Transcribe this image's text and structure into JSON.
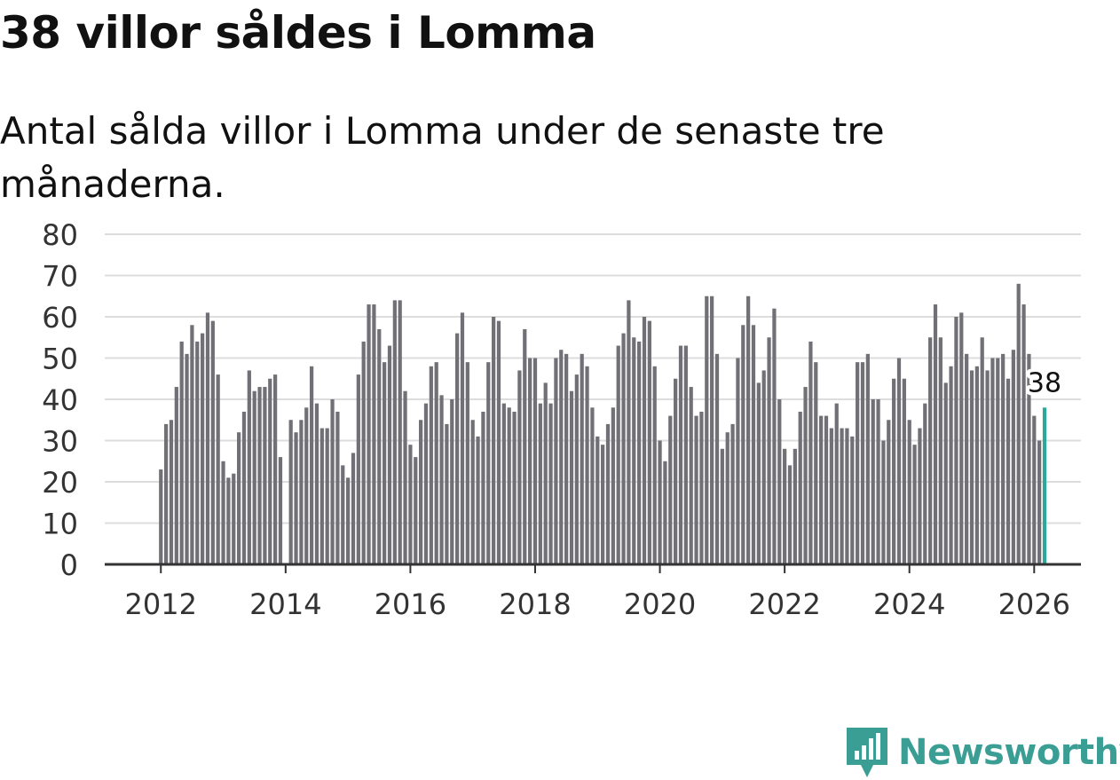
{
  "title": "38 villor såldes i Lomma",
  "subtitle": "Antal sålda villor i Lomma under de senaste tre månaderna.",
  "brand": "Newsworthy",
  "colors": {
    "bar": "#707076",
    "highlight": "#2aa89a",
    "grid": "#dddddd",
    "axis": "#333333",
    "brand": "#3a9e95"
  },
  "chart_data": {
    "type": "bar",
    "title": "38 villor såldes i Lomma",
    "xlabel": "",
    "ylabel": "",
    "ylim": [
      0,
      80
    ],
    "yticks": [
      0,
      10,
      20,
      30,
      40,
      50,
      60,
      70,
      80
    ],
    "xlim": [
      2011.1,
      2026.75
    ],
    "xticks": [
      2012,
      2014,
      2016,
      2018,
      2020,
      2022,
      2024,
      2026
    ],
    "start": "2012-01",
    "frequency": "monthly",
    "values": [
      23,
      34,
      35,
      43,
      54,
      51,
      58,
      54,
      56,
      61,
      59,
      46,
      25,
      21,
      22,
      32,
      37,
      47,
      42,
      43,
      43,
      45,
      46,
      26,
      0,
      35,
      32,
      35,
      38,
      48,
      39,
      33,
      33,
      40,
      37,
      24,
      21,
      27,
      46,
      54,
      63,
      63,
      57,
      49,
      53,
      64,
      64,
      42,
      29,
      26,
      35,
      39,
      48,
      49,
      41,
      34,
      40,
      56,
      61,
      49,
      35,
      31,
      37,
      49,
      60,
      59,
      39,
      38,
      37,
      47,
      57,
      50,
      50,
      39,
      44,
      39,
      50,
      52,
      51,
      42,
      46,
      51,
      48,
      38,
      31,
      29,
      34,
      38,
      53,
      56,
      64,
      55,
      54,
      60,
      59,
      48,
      30,
      25,
      36,
      45,
      53,
      53,
      43,
      36,
      37,
      65,
      65,
      51,
      28,
      32,
      34,
      50,
      58,
      65,
      58,
      44,
      47,
      55,
      62,
      40,
      28,
      24,
      28,
      37,
      43,
      54,
      49,
      36,
      36,
      33,
      39,
      33,
      33,
      31,
      49,
      49,
      51,
      40,
      40,
      30,
      35,
      45,
      50,
      45,
      35,
      29,
      33,
      39,
      55,
      63,
      55,
      44,
      48,
      60,
      61,
      51,
      47,
      48,
      55,
      47,
      50,
      50,
      51,
      45,
      52,
      68,
      63,
      51,
      36,
      30,
      38
    ],
    "highlight": {
      "label": "38",
      "value": 38,
      "index": 170
    }
  }
}
